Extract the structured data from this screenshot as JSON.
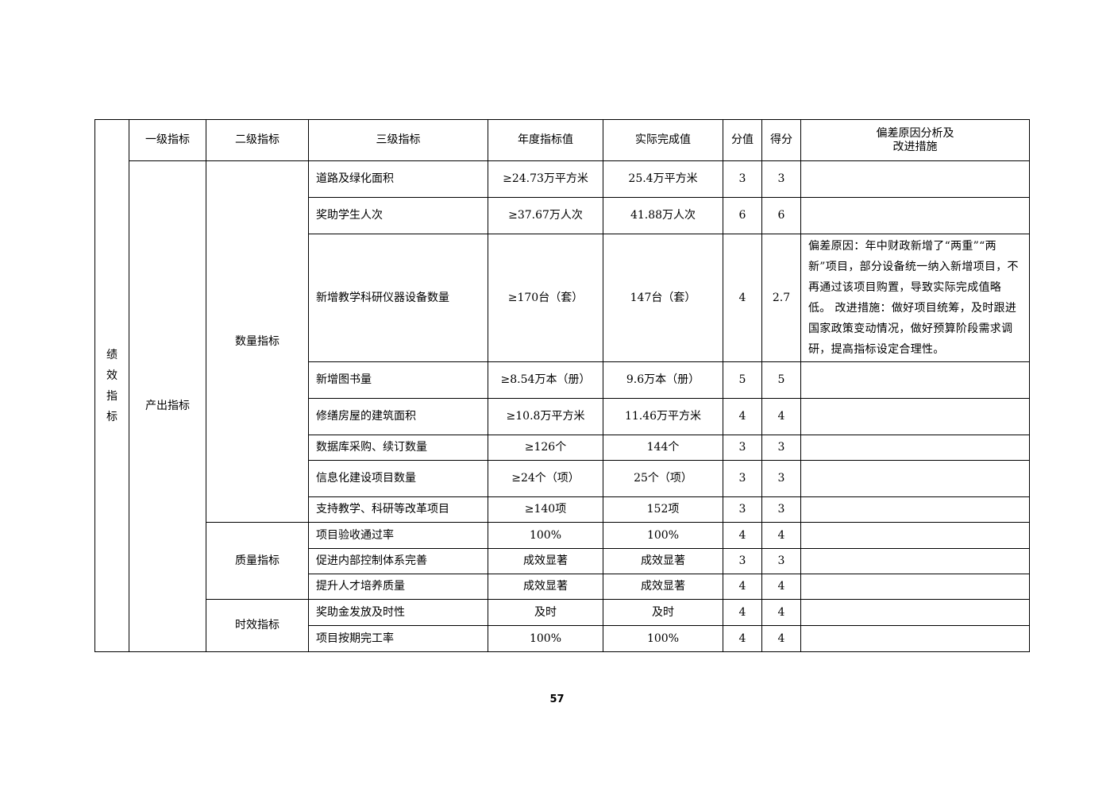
{
  "table": {
    "side_label": "绩效指标",
    "headers": [
      "一级指标",
      "二级指标",
      "三级指标",
      "年度指标值",
      "实际完成值",
      "分值",
      "得分",
      "偏差原因分析及\n改进措施"
    ],
    "level1": "产出指标",
    "groups": [
      {
        "level2": "数量指标",
        "rows": [
          {
            "name": "道路及绿化面积",
            "target": "≥24.73万平方米",
            "actual": "25.4万平方米",
            "weight": "3",
            "score": "3",
            "note": ""
          },
          {
            "name": "奖助学生人次",
            "target": "≥37.67万人次",
            "actual": "41.88万人次",
            "weight": "6",
            "score": "6",
            "note": ""
          },
          {
            "name": "新增教学科研仪器设备数量",
            "target": "≥170台（套）",
            "actual": "147台（套）",
            "weight": "4",
            "score": "2.7",
            "note": "偏差原因：年中财政新增了“两重”“两新”项目，部分设备统一纳入新增项目，不再通过该项目购置，导致实际完成值略低。 改进措施：做好项目统筹，及时跟进国家政策变动情况，做好预算阶段需求调研，提高指标设定合理性。"
          },
          {
            "name": "新增图书量",
            "target": "≥8.54万本（册）",
            "actual": "9.6万本（册）",
            "weight": "5",
            "score": "5",
            "note": ""
          },
          {
            "name": "修缮房屋的建筑面积",
            "target": "≥10.8万平方米",
            "actual": "11.46万平方米",
            "weight": "4",
            "score": "4",
            "note": ""
          },
          {
            "name": "数据库采购、续订数量",
            "target": "≥126个",
            "actual": "144个",
            "weight": "3",
            "score": "3",
            "note": ""
          },
          {
            "name": "信息化建设项目数量",
            "target": "≥24个（项）",
            "actual": "25个（项）",
            "weight": "3",
            "score": "3",
            "note": ""
          },
          {
            "name": "支持教学、科研等改革项目",
            "target": "≥140项",
            "actual": "152项",
            "weight": "3",
            "score": "3",
            "note": ""
          }
        ]
      },
      {
        "level2": "质量指标",
        "rows": [
          {
            "name": "项目验收通过率",
            "target": "100%",
            "actual": "100%",
            "weight": "4",
            "score": "4",
            "note": ""
          },
          {
            "name": "促进内部控制体系完善",
            "target": "成效显著",
            "actual": "成效显著",
            "weight": "3",
            "score": "3",
            "note": ""
          },
          {
            "name": "提升人才培养质量",
            "target": "成效显著",
            "actual": "成效显著",
            "weight": "4",
            "score": "4",
            "note": ""
          }
        ]
      },
      {
        "level2": "时效指标",
        "rows": [
          {
            "name": "奖助金发放及时性",
            "target": "及时",
            "actual": "及时",
            "weight": "4",
            "score": "4",
            "note": ""
          },
          {
            "name": "项目按期完工率",
            "target": "100%",
            "actual": "100%",
            "weight": "4",
            "score": "4",
            "note": ""
          }
        ]
      }
    ]
  },
  "page_number": "57"
}
